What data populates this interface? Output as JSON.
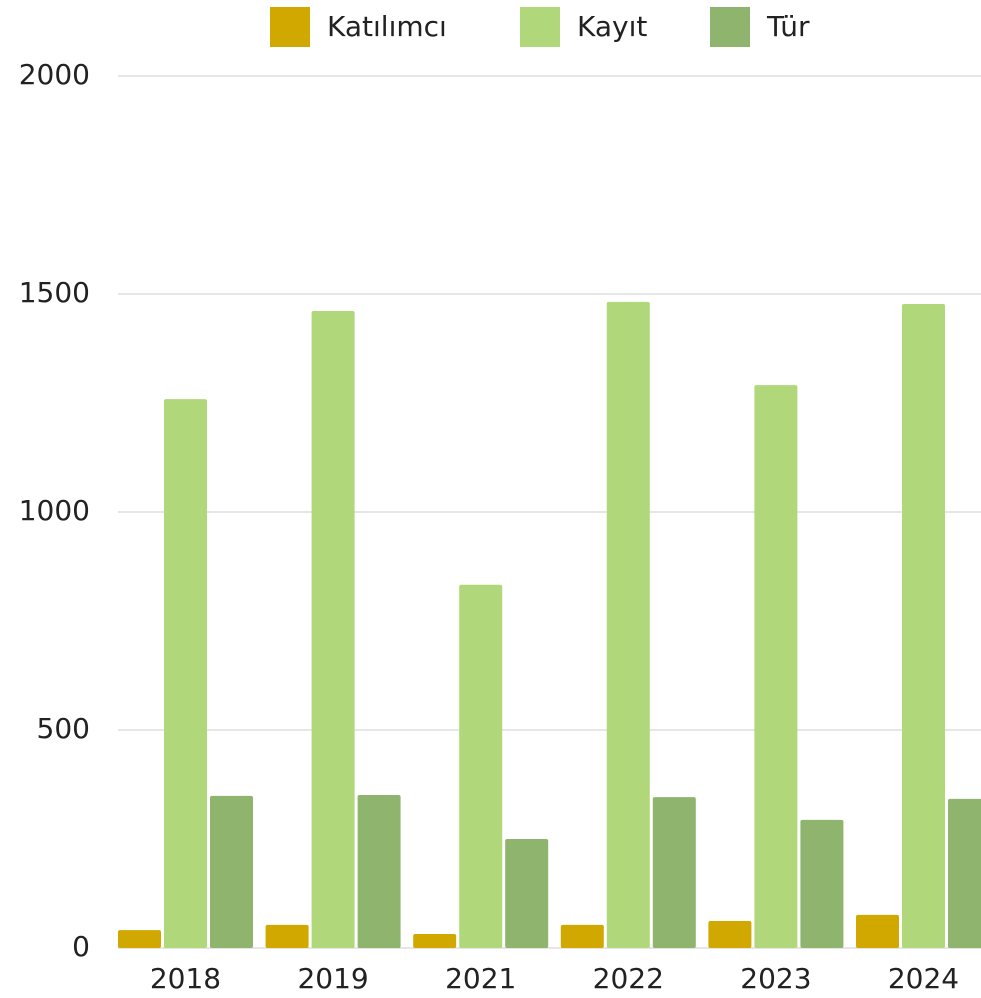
{
  "chart_data": {
    "type": "bar",
    "categories": [
      "2018",
      "2019",
      "2021",
      "2022",
      "2023",
      "2024"
    ],
    "series": [
      {
        "name": "Katılımcı",
        "color": "#d1a800",
        "values": [
          41,
          53,
          32,
          53,
          62,
          76
        ]
      },
      {
        "name": "Kayıt",
        "color": "#b0d87a",
        "values": [
          1259,
          1461,
          833,
          1482,
          1291,
          1477
        ]
      },
      {
        "name": "Tür",
        "color": "#8fb46e",
        "values": [
          349,
          351,
          250,
          346,
          294,
          342
        ]
      }
    ],
    "ylim": [
      0,
      2000
    ],
    "yticks": [
      0,
      500,
      1000,
      1500,
      2000
    ],
    "grid": true,
    "legend": "top"
  }
}
